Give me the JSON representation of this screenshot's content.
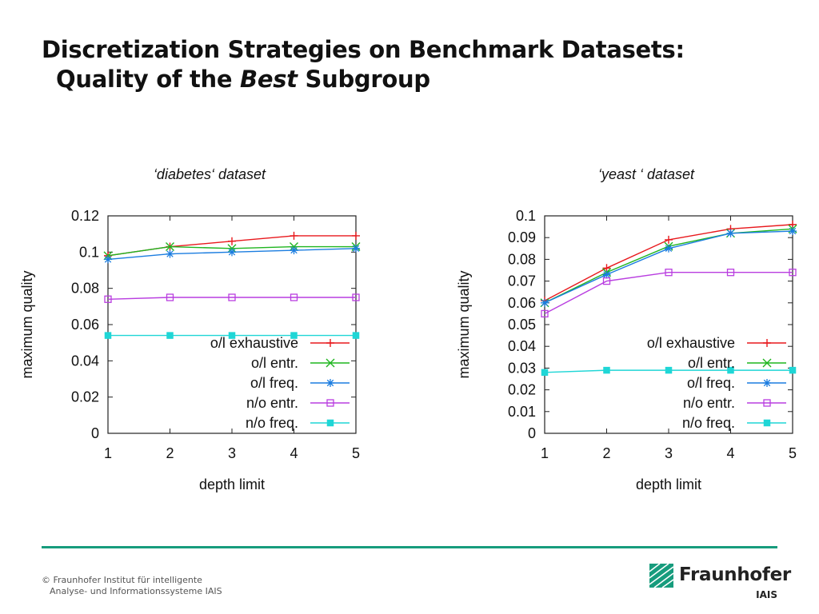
{
  "slide": {
    "title_line1": "Discretization Strategies on Benchmark Datasets:",
    "title_line2_pre": "Quality of the ",
    "title_line2_em": "Best",
    "title_line2_post": " Subgroup"
  },
  "footer": {
    "line1": "© Fraunhofer Institut für intelligente",
    "line2": "Analyse- und Informationssysteme IAIS"
  },
  "logo": {
    "name": "Fraunhofer",
    "unit": "IAIS",
    "color": "#179c7d"
  },
  "chart_data": [
    {
      "type": "line",
      "title": "‘diabetes‘ dataset",
      "xlabel": "depth limit",
      "ylabel": "maximum quality",
      "x": [
        1,
        2,
        3,
        4,
        5
      ],
      "xlim": [
        1,
        5
      ],
      "ylim": [
        0,
        0.12
      ],
      "yticks": [
        0,
        0.02,
        0.04,
        0.06,
        0.08,
        0.1,
        0.12
      ],
      "ytick_labels": [
        "0",
        "0.02",
        "0.04",
        "0.06",
        "0.08",
        "0.1",
        "0.12"
      ],
      "xtick_labels": [
        "1",
        "2",
        "3",
        "4",
        "5"
      ],
      "legend_position": "lower-right",
      "grid": false,
      "series": [
        {
          "name": "o/l exhaustive",
          "color": "#e8191d",
          "marker": "plus",
          "values": [
            0.098,
            0.103,
            0.106,
            0.109,
            0.109
          ]
        },
        {
          "name": "o/l entr.",
          "color": "#1fb51f",
          "marker": "cross",
          "values": [
            0.098,
            0.103,
            0.102,
            0.103,
            0.103
          ]
        },
        {
          "name": "o/l freq.",
          "color": "#1b7de0",
          "marker": "star",
          "values": [
            0.096,
            0.099,
            0.1,
            0.101,
            0.102
          ]
        },
        {
          "name": "n/o entr.",
          "color": "#b93ee0",
          "marker": "square",
          "values": [
            0.074,
            0.075,
            0.075,
            0.075,
            0.075
          ]
        },
        {
          "name": "n/o freq.",
          "color": "#1fd6d6",
          "marker": "filled-square",
          "values": [
            0.054,
            0.054,
            0.054,
            0.054,
            0.054
          ]
        }
      ]
    },
    {
      "type": "line",
      "title": "‘yeast ‘ dataset",
      "xlabel": "depth limit",
      "ylabel": "maximum quality",
      "x": [
        1,
        2,
        3,
        4,
        5
      ],
      "xlim": [
        1,
        5
      ],
      "ylim": [
        0,
        0.1
      ],
      "yticks": [
        0,
        0.01,
        0.02,
        0.03,
        0.04,
        0.05,
        0.06,
        0.07,
        0.08,
        0.09,
        0.1
      ],
      "ytick_labels": [
        "0",
        "0.01",
        "0.02",
        "0.03",
        "0.04",
        "0.05",
        "0.06",
        "0.07",
        "0.08",
        "0.09",
        "0.1"
      ],
      "xtick_labels": [
        "1",
        "2",
        "3",
        "4",
        "5"
      ],
      "legend_position": "lower-right",
      "grid": false,
      "series": [
        {
          "name": "o/l exhaustive",
          "color": "#e8191d",
          "marker": "plus",
          "values": [
            0.061,
            0.076,
            0.089,
            0.094,
            0.096
          ]
        },
        {
          "name": "o/l entr.",
          "color": "#1fb51f",
          "marker": "cross",
          "values": [
            0.06,
            0.074,
            0.086,
            0.092,
            0.094
          ]
        },
        {
          "name": "o/l freq.",
          "color": "#1b7de0",
          "marker": "star",
          "values": [
            0.06,
            0.073,
            0.085,
            0.092,
            0.093
          ]
        },
        {
          "name": "n/o entr.",
          "color": "#b93ee0",
          "marker": "square",
          "values": [
            0.055,
            0.07,
            0.074,
            0.074,
            0.074
          ]
        },
        {
          "name": "n/o freq.",
          "color": "#1fd6d6",
          "marker": "filled-square",
          "values": [
            0.028,
            0.029,
            0.029,
            0.029,
            0.029
          ]
        }
      ]
    }
  ]
}
